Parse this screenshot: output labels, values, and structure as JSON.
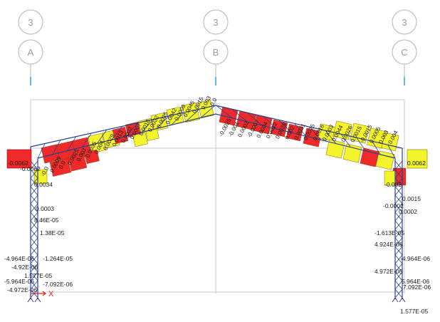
{
  "grid": {
    "bubbles": [
      {
        "number": "3",
        "letter": "A"
      },
      {
        "number": "3",
        "letter": "B"
      },
      {
        "number": "3",
        "letter": "C"
      }
    ]
  },
  "colors": {
    "red": "#f02a2a",
    "yellow": "#f4f42a",
    "frame": "#2a3f8f",
    "grid_line": "#c8c8c8",
    "bubble": "#b4b4b4",
    "axis_x": "#e02020",
    "axis_z": "#3060ff"
  },
  "end_values": {
    "left": "-0.0062",
    "right": "0.0062"
  },
  "axis": {
    "x_label": "X"
  },
  "left_rafter_labels": [
    "-0.0",
    "0.0009",
    "0.0",
    "0.0025",
    "0.003",
    "0.0035",
    "0.004",
    "0.0029",
    "0.0013",
    "0.0002",
    "0.0007",
    "0.0016",
    "0.0032",
    "0.0025",
    "0.0042",
    "0.0009",
    "0.0045",
    "0.0015",
    "0.003",
    "0.0"
  ],
  "right_rafter_labels": [
    "-0.0025",
    "-0.001",
    "0.0002",
    "-0.0007",
    "0.0004",
    "0.0012",
    "0.0029",
    "0.002",
    "0.0031",
    "0.0025",
    "0.0016",
    "0.0003",
    "0.0044",
    "0.0026",
    "0.0015",
    "-0.0015",
    "0.0005",
    "0.003",
    "0.004"
  ],
  "left_column_labels": [
    "-0.0062",
    "0.0034",
    "0.0003",
    "8.46E-05",
    "1.38E-05",
    "-4.964E-06",
    "-1.264E-05",
    "-4.92E-06",
    "-5.964E-06",
    "-7.092E-06",
    "-4.972E-06",
    "1.577E-05"
  ],
  "right_column_labels": [
    "-0.002",
    "0.0015",
    "0.0002",
    "-0.0002",
    "-1.613E-05",
    "4.924E-06",
    "-4.964E-06",
    "4.972E-06",
    "5.964E-06",
    "7.092E-06",
    "1.577E-05"
  ]
}
